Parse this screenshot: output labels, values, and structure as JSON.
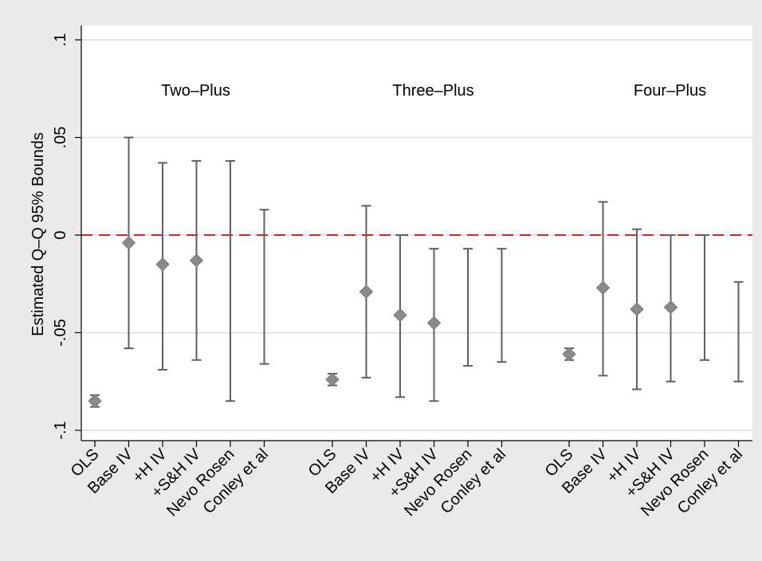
{
  "chart_data": {
    "type": "scatter",
    "ylabel": "Estimated Q–Q 95% Bounds",
    "ylim": [
      -0.1,
      0.1
    ],
    "yticks": [
      {
        "value": 0.1,
        "label": ".1"
      },
      {
        "value": 0.05,
        "label": ".05"
      },
      {
        "value": 0,
        "label": "0"
      },
      {
        "value": -0.05,
        "label": "-.05"
      },
      {
        "value": -0.1,
        "label": "-.1"
      }
    ],
    "grid": true,
    "reference_line": {
      "y": 0,
      "color": "#e0201b",
      "style": "dashed"
    },
    "groups": [
      {
        "title": "Two–Plus",
        "items": [
          {
            "label": "OLS",
            "point": -0.085,
            "low": -0.088,
            "high": -0.082
          },
          {
            "label": "Base IV",
            "point": -0.004,
            "low": -0.058,
            "high": 0.05
          },
          {
            "label": "+H IV",
            "point": -0.015,
            "low": -0.069,
            "high": 0.037
          },
          {
            "label": "+S&H IV",
            "point": -0.013,
            "low": -0.064,
            "high": 0.038
          },
          {
            "label": "Nevo Rosen",
            "point": null,
            "low": -0.085,
            "high": 0.038
          },
          {
            "label": "Conley et al",
            "point": null,
            "low": -0.066,
            "high": 0.013
          }
        ]
      },
      {
        "title": "Three–Plus",
        "items": [
          {
            "label": "OLS",
            "point": -0.074,
            "low": -0.077,
            "high": -0.071
          },
          {
            "label": "Base IV",
            "point": -0.029,
            "low": -0.073,
            "high": 0.015
          },
          {
            "label": "+H IV",
            "point": -0.041,
            "low": -0.083,
            "high": 0.0
          },
          {
            "label": "+S&H IV",
            "point": -0.045,
            "low": -0.085,
            "high": -0.007
          },
          {
            "label": "Nevo Rosen",
            "point": null,
            "low": -0.067,
            "high": -0.007
          },
          {
            "label": "Conley et al",
            "point": null,
            "low": -0.065,
            "high": -0.007
          }
        ]
      },
      {
        "title": "Four–Plus",
        "items": [
          {
            "label": "OLS",
            "point": -0.061,
            "low": -0.064,
            "high": -0.058
          },
          {
            "label": "Base IV",
            "point": -0.027,
            "low": -0.072,
            "high": 0.017
          },
          {
            "label": "+H IV",
            "point": -0.038,
            "low": -0.079,
            "high": 0.003
          },
          {
            "label": "+S&H IV",
            "point": -0.037,
            "low": -0.075,
            "high": 0.0
          },
          {
            "label": "Nevo Rosen",
            "point": null,
            "low": -0.064,
            "high": 0.0
          },
          {
            "label": "Conley et al",
            "point": null,
            "low": -0.075,
            "high": -0.024
          }
        ]
      }
    ]
  }
}
